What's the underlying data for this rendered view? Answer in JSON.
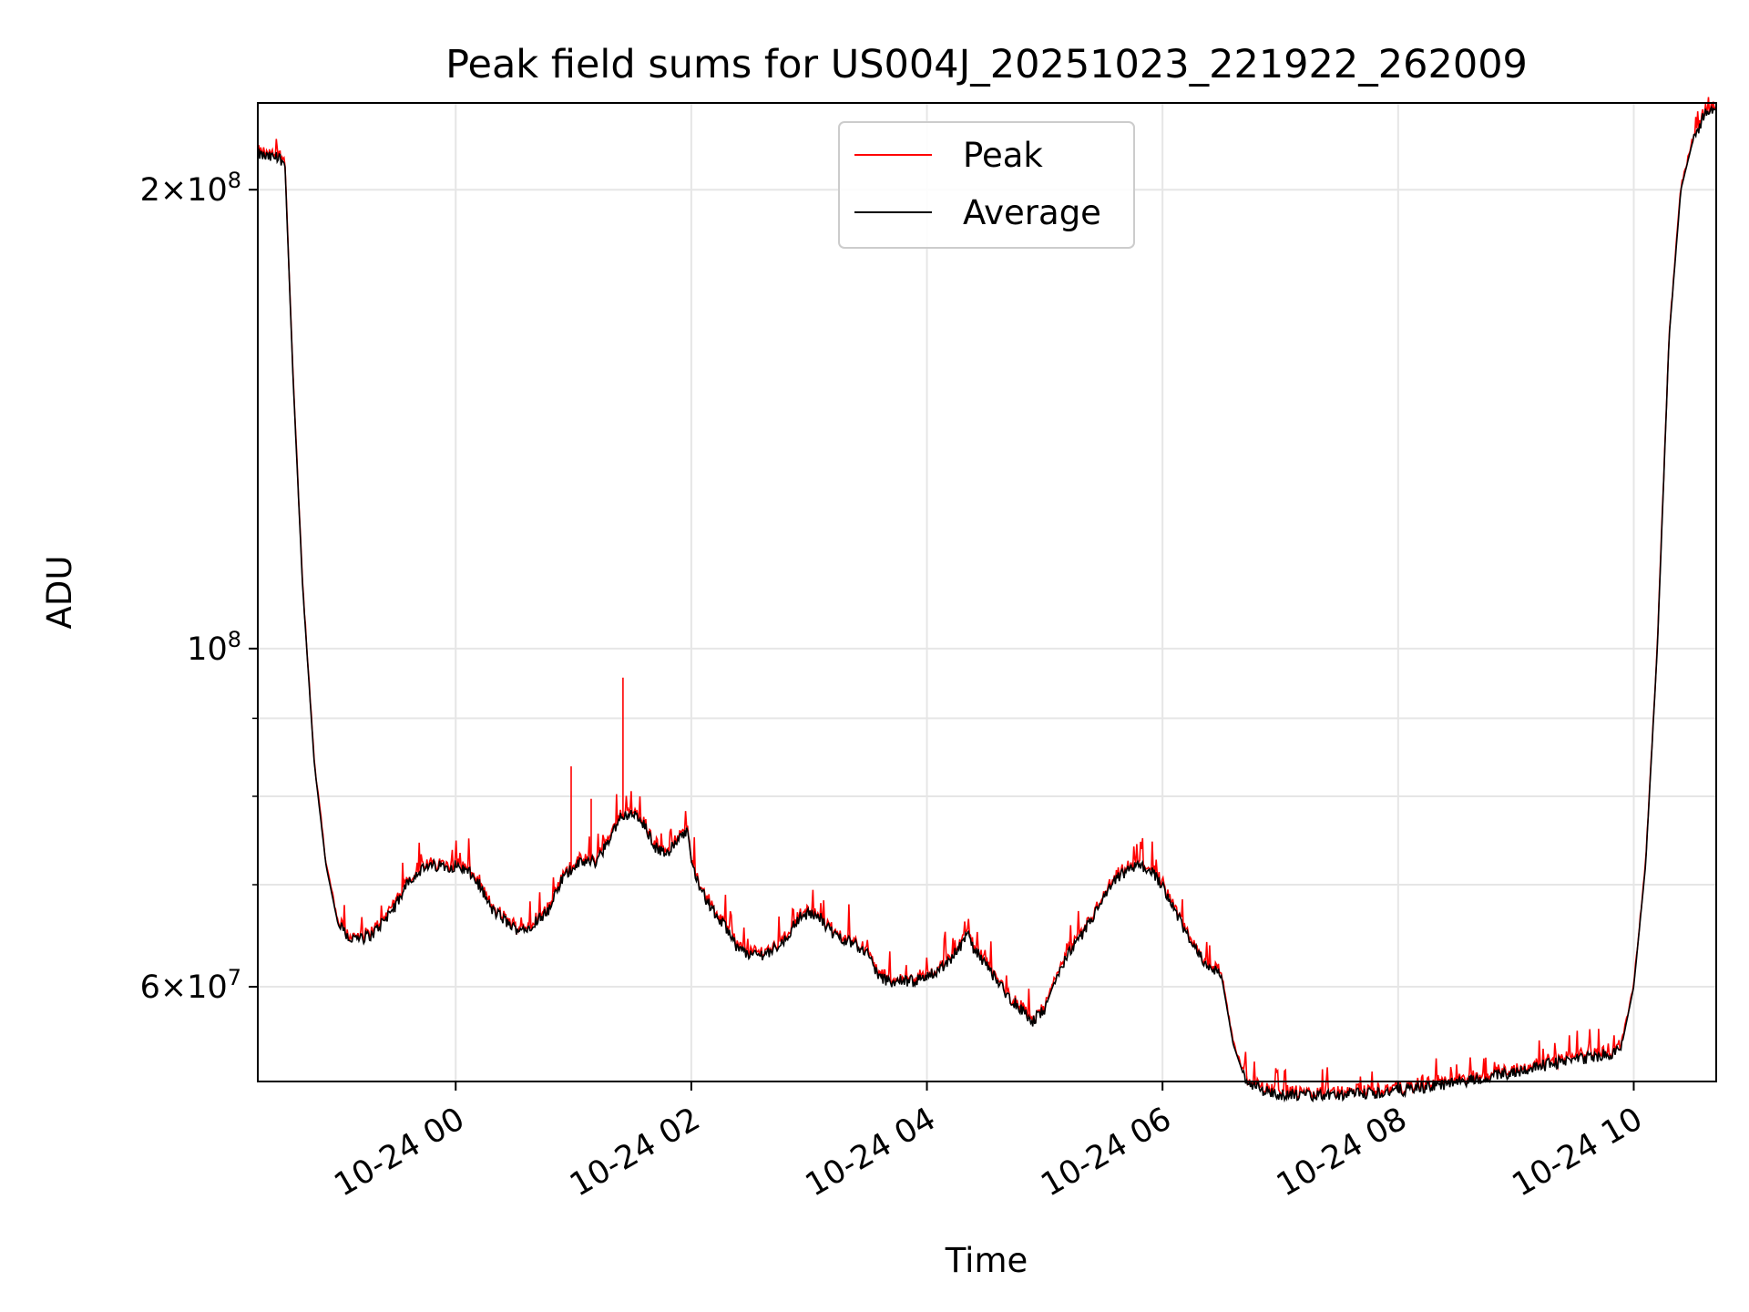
{
  "chart_data": {
    "type": "line",
    "title": "Peak field sums for US004J_20251023_221922_262009",
    "xlabel": "Time",
    "ylabel": "ADU",
    "yscale": "log",
    "xlim_hours": [
      -1.68,
      10.7
    ],
    "ylim": [
      52000000,
      228000000
    ],
    "grid": true,
    "legend": {
      "position": "top-center",
      "entries": [
        "Peak",
        "Average"
      ]
    },
    "colors": {
      "Peak": "#ff0000",
      "Average": "#000000"
    },
    "x_ticks": [
      {
        "value": 0,
        "label": "10-24 00"
      },
      {
        "value": 2,
        "label": "10-24 02"
      },
      {
        "value": 4,
        "label": "10-24 04"
      },
      {
        "value": 6,
        "label": "10-24 06"
      },
      {
        "value": 8,
        "label": "10-24 08"
      },
      {
        "value": 10,
        "label": "10-24 10"
      }
    ],
    "y_ticks_major": [
      {
        "value": 60000000,
        "base": "6",
        "exp": "7",
        "label": "6 × 10^7"
      },
      {
        "value": 100000000,
        "base": "",
        "exp": "8",
        "label": "10^8"
      },
      {
        "value": 200000000,
        "base": "2",
        "exp": "8",
        "label": "2 × 10^8"
      }
    ],
    "y_ticks_minor": [
      70000000,
      80000000,
      90000000
    ],
    "x_hours": [
      -1.68,
      -1.6,
      -1.5,
      -1.45,
      -1.38,
      -1.3,
      -1.2,
      -1.1,
      -1.0,
      -0.9,
      -0.8,
      -0.7,
      -0.6,
      -0.5,
      -0.4,
      -0.3,
      -0.2,
      -0.1,
      0.0,
      0.1,
      0.2,
      0.3,
      0.4,
      0.5,
      0.6,
      0.7,
      0.8,
      0.9,
      1.0,
      1.1,
      1.2,
      1.3,
      1.4,
      1.5,
      1.6,
      1.7,
      1.8,
      1.9,
      1.97,
      2.0,
      2.1,
      2.2,
      2.3,
      2.4,
      2.5,
      2.6,
      2.7,
      2.8,
      2.9,
      3.0,
      3.1,
      3.2,
      3.3,
      3.4,
      3.5,
      3.6,
      3.7,
      3.8,
      3.9,
      4.0,
      4.1,
      4.2,
      4.3,
      4.35,
      4.4,
      4.5,
      4.6,
      4.7,
      4.8,
      4.9,
      5.0,
      5.1,
      5.2,
      5.3,
      5.4,
      5.5,
      5.6,
      5.7,
      5.8,
      5.9,
      6.0,
      6.1,
      6.2,
      6.3,
      6.4,
      6.5,
      6.6,
      6.7,
      6.8,
      6.9,
      7.0,
      7.2,
      7.4,
      7.6,
      7.8,
      8.0,
      8.2,
      8.4,
      8.6,
      8.8,
      9.0,
      9.2,
      9.4,
      9.6,
      9.8,
      9.9,
      10.0,
      10.1,
      10.2,
      10.3,
      10.4,
      10.5,
      10.6,
      10.7
    ],
    "average": [
      211000000,
      210000000,
      210000000,
      208000000,
      150000000,
      110000000,
      84000000,
      72000000,
      66000000,
      64500000,
      64500000,
      65000000,
      66500000,
      68000000,
      70500000,
      71500000,
      72000000,
      72000000,
      72000000,
      71500000,
      70000000,
      67500000,
      66500000,
      65500000,
      65500000,
      66500000,
      67500000,
      70500000,
      72000000,
      72500000,
      72500000,
      75000000,
      77500000,
      78000000,
      76500000,
      74000000,
      73500000,
      75000000,
      76000000,
      72500000,
      69000000,
      67000000,
      65500000,
      63500000,
      63000000,
      63000000,
      63500000,
      64500000,
      66500000,
      67000000,
      66500000,
      65000000,
      64500000,
      64000000,
      63000000,
      60800000,
      60500000,
      60500000,
      60500000,
      61000000,
      61500000,
      62500000,
      64000000,
      65000000,
      63500000,
      62000000,
      60500000,
      59000000,
      58000000,
      57000000,
      58000000,
      61000000,
      63000000,
      64500000,
      66500000,
      68500000,
      70500000,
      71500000,
      72000000,
      71500000,
      70000000,
      67500000,
      65000000,
      63000000,
      62000000,
      61000000,
      55000000,
      52200000,
      51500000,
      51200000,
      51000000,
      50900000,
      50900000,
      51000000,
      51100000,
      51300000,
      51500000,
      51800000,
      52100000,
      52400000,
      52800000,
      53200000,
      53600000,
      53900000,
      54200000,
      55000000,
      60000000,
      72000000,
      100000000,
      160000000,
      200000000,
      215000000,
      224000000,
      226000000
    ],
    "peak_spikes": [
      {
        "x": 0.98,
        "y": 83700000
      },
      {
        "x": 1.15,
        "y": 79700000
      },
      {
        "x": 1.42,
        "y": 95700000
      }
    ]
  }
}
